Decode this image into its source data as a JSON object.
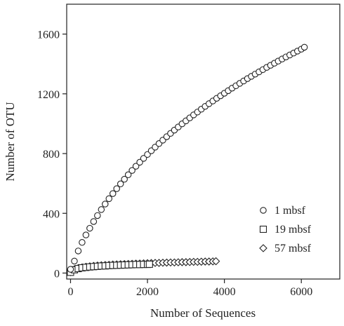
{
  "chart_data": {
    "type": "scatter",
    "title": "",
    "xlabel": "Number of Sequences",
    "ylabel": "Number of OTU",
    "xlim": [
      -100,
      7000
    ],
    "ylim": [
      -40,
      1800
    ],
    "xticks": [
      0,
      2000,
      4000,
      6000
    ],
    "yticks": [
      0,
      400,
      800,
      1200,
      1600
    ],
    "grid": false,
    "legend": "bottom-right",
    "series": [
      {
        "name": "1 mbsf",
        "marker": "circle",
        "x": [
          0,
          100,
          200,
          300,
          400,
          500,
          600,
          700,
          800,
          900,
          1000,
          1100,
          1200,
          1300,
          1400,
          1500,
          1600,
          1700,
          1800,
          1900,
          2000,
          2100,
          2200,
          2300,
          2400,
          2500,
          2600,
          2700,
          2800,
          2900,
          3000,
          3100,
          3200,
          3300,
          3400,
          3500,
          3600,
          3700,
          3800,
          3900,
          4000,
          4100,
          4200,
          4300,
          4400,
          4500,
          4600,
          4700,
          4800,
          4900,
          5000,
          5100,
          5200,
          5300,
          5400,
          5500,
          5600,
          5700,
          5800,
          5900,
          6000,
          6080
        ],
        "y": [
          25,
          80,
          148,
          205,
          255,
          300,
          345,
          385,
          425,
          462,
          498,
          532,
          565,
          597,
          628,
          658,
          687,
          715,
          742,
          768,
          794,
          819,
          843,
          867,
          890,
          913,
          935,
          957,
          978,
          999,
          1019,
          1039,
          1059,
          1078,
          1097,
          1116,
          1134,
          1152,
          1170,
          1187,
          1204,
          1221,
          1238,
          1254,
          1270,
          1286,
          1302,
          1317,
          1332,
          1347,
          1362,
          1377,
          1391,
          1405,
          1419,
          1433,
          1447,
          1460,
          1473,
          1486,
          1499,
          1512
        ]
      },
      {
        "name": "19 mbsf",
        "marker": "square",
        "x": [
          0,
          100,
          200,
          300,
          400,
          500,
          600,
          700,
          800,
          900,
          1000,
          1100,
          1200,
          1300,
          1400,
          1500,
          1600,
          1700,
          1800,
          1900,
          2000,
          2050
        ],
        "y": [
          5,
          22,
          30,
          35,
          38,
          41,
          43,
          45,
          47,
          48,
          50,
          51,
          52,
          53,
          54,
          55,
          56,
          57,
          57,
          58,
          58,
          59
        ]
      },
      {
        "name": "57 mbsf",
        "marker": "diamond",
        "x": [
          0,
          100,
          200,
          300,
          400,
          500,
          600,
          700,
          800,
          900,
          1000,
          1100,
          1200,
          1300,
          1400,
          1500,
          1600,
          1700,
          1800,
          1900,
          2000,
          2100,
          2200,
          2300,
          2400,
          2500,
          2600,
          2700,
          2800,
          2900,
          3000,
          3100,
          3200,
          3300,
          3400,
          3500,
          3600,
          3700,
          3780
        ],
        "y": [
          6,
          25,
          33,
          38,
          42,
          45,
          48,
          50,
          52,
          54,
          55,
          57,
          58,
          59,
          60,
          61,
          62,
          63,
          64,
          65,
          66,
          67,
          68,
          68,
          69,
          70,
          71,
          71,
          72,
          73,
          73,
          74,
          75,
          75,
          76,
          77,
          77,
          78,
          79
        ]
      }
    ]
  }
}
